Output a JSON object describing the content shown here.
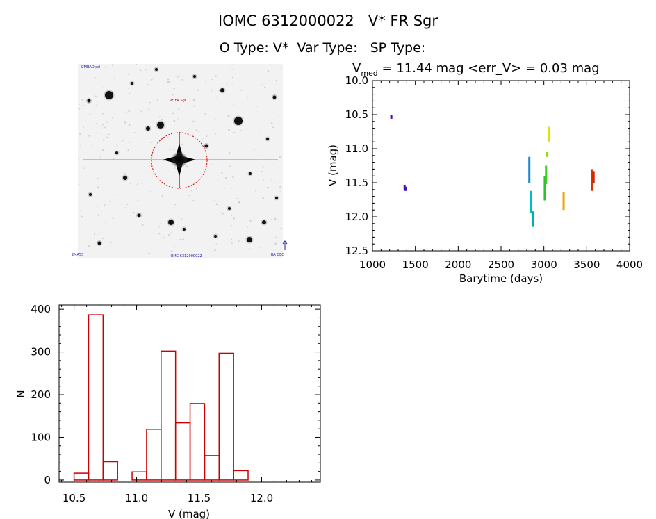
{
  "header": {
    "title_line": "IOMC 6312000022   V* FR Sgr",
    "type_line": "O Type: V*  Var Type:   SP Type:"
  },
  "sky_image": {
    "top_left_label": "SIMBAD sel",
    "target_label": "V* FR Sgr",
    "bottom_center_label": "IOMC 6312000022",
    "bottom_left_label": "2MASS",
    "bottom_right_label": "RA DEC"
  },
  "colors": {
    "hist_bar": "#cc0000",
    "aperture": "#cc0000"
  },
  "chart_data": [
    {
      "type": "scatter",
      "title": "V_med = 11.44 mag <err_V> = 0.03 mag",
      "title_parts": {
        "v": "V",
        "sub": "med",
        "rest": " = 11.44 mag <err_V> = 0.03 mag"
      },
      "xlabel": "Barytime (days)",
      "ylabel": "V (mag)",
      "xlim": [
        1000,
        4000
      ],
      "ylim": [
        10.0,
        12.5
      ],
      "y_inverted": true,
      "xticks": [
        1000,
        1500,
        2000,
        2500,
        3000,
        3500,
        4000
      ],
      "yticks": [
        10.0,
        10.5,
        11.0,
        11.5,
        12.0,
        12.5
      ],
      "xtick_labels": [
        "1000",
        "1500",
        "2000",
        "2500",
        "3000",
        "3500",
        "4000"
      ],
      "ytick_labels": [
        "10.0",
        "10.5",
        "11.0",
        "11.5",
        "12.0",
        "12.5"
      ],
      "groups": [
        {
          "x": 1220,
          "y_min": 10.5,
          "y_max": 10.56,
          "color": "#5a00a8"
        },
        {
          "x": 1375,
          "y_min": 11.53,
          "y_max": 11.6,
          "color": "#3a10c0"
        },
        {
          "x": 1385,
          "y_min": 11.56,
          "y_max": 11.62,
          "color": "#3a10c0"
        },
        {
          "x": 2830,
          "y_min": 11.12,
          "y_max": 11.5,
          "color": "#1a88d8"
        },
        {
          "x": 2845,
          "y_min": 11.62,
          "y_max": 11.95,
          "color": "#00c0c0"
        },
        {
          "x": 2875,
          "y_min": 11.92,
          "y_max": 12.15,
          "color": "#00b0b0"
        },
        {
          "x": 3010,
          "y_min": 11.4,
          "y_max": 11.76,
          "color": "#30c030"
        },
        {
          "x": 3025,
          "y_min": 11.25,
          "y_max": 11.52,
          "color": "#40cc20"
        },
        {
          "x": 3040,
          "y_min": 11.05,
          "y_max": 11.12,
          "color": "#80e000"
        },
        {
          "x": 3055,
          "y_min": 10.68,
          "y_max": 10.9,
          "color": "#dde000"
        },
        {
          "x": 3230,
          "y_min": 11.64,
          "y_max": 11.9,
          "color": "#f0a000"
        },
        {
          "x": 3565,
          "y_min": 11.3,
          "y_max": 11.62,
          "color": "#e03000"
        },
        {
          "x": 3580,
          "y_min": 11.33,
          "y_max": 11.5,
          "color": "#d02000"
        }
      ]
    },
    {
      "type": "bar",
      "xlabel": "V (mag)",
      "ylabel": "N",
      "xlim": [
        10.38,
        12.47
      ],
      "ylim": [
        -5,
        410
      ],
      "xticks": [
        10.5,
        11.0,
        11.5,
        12.0
      ],
      "yticks": [
        0,
        100,
        200,
        300,
        400
      ],
      "xtick_labels": [
        "10.5",
        "11.0",
        "11.5",
        "12.0"
      ],
      "ytick_labels": [
        "0",
        "100",
        "200",
        "300",
        "400"
      ],
      "bin_width": 0.116,
      "bins": [
        {
          "x0": 10.5,
          "value": 16
        },
        {
          "x0": 10.616,
          "value": 387
        },
        {
          "x0": 10.732,
          "value": 43
        },
        {
          "x0": 10.848,
          "value": 0
        },
        {
          "x0": 10.964,
          "value": 19
        },
        {
          "x0": 11.08,
          "value": 119
        },
        {
          "x0": 11.196,
          "value": 302
        },
        {
          "x0": 11.312,
          "value": 134
        },
        {
          "x0": 11.428,
          "value": 179
        },
        {
          "x0": 11.544,
          "value": 57
        },
        {
          "x0": 11.66,
          "value": 297
        },
        {
          "x0": 11.776,
          "value": 22
        }
      ]
    }
  ]
}
